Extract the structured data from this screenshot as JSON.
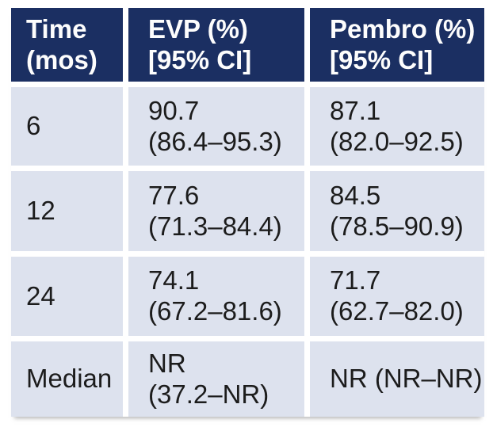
{
  "colors": {
    "header_bg": "#1b2f62",
    "header_text": "#fdfdfd",
    "body_bg": "#dde2ee",
    "body_text": "#1c1c1c",
    "gap": "#ffffff"
  },
  "table": {
    "headers": [
      "Time\n(mos)",
      "EVP (%)\n[95% CI]",
      "Pembro (%)\n[95% CI]"
    ],
    "rows": [
      {
        "time": "6",
        "evp": "90.7\n(86.4–95.3)",
        "pembro": "87.1\n(82.0–92.5)"
      },
      {
        "time": "12",
        "evp": "77.6\n(71.3–84.4)",
        "pembro": "84.5\n(78.5–90.9)"
      },
      {
        "time": "24",
        "evp": "74.1\n(67.2–81.6)",
        "pembro": "71.7\n(62.7–82.0)"
      },
      {
        "time": "Median",
        "evp": "NR\n(37.2–NR)",
        "pembro": "NR (NR–NR)"
      }
    ]
  },
  "chart_data": {
    "type": "table",
    "title": "",
    "columns": [
      "Time (mos)",
      "EVP (%) [95% CI]",
      "Pembro (%) [95% CI]"
    ],
    "rows": [
      [
        "6",
        "90.7 (86.4–95.3)",
        "87.1 (82.0–92.5)"
      ],
      [
        "12",
        "77.6 (71.3–84.4)",
        "84.5 (78.5–90.9)"
      ],
      [
        "24",
        "74.1 (67.2–81.6)",
        "71.7 (62.7–82.0)"
      ],
      [
        "Median",
        "NR (37.2–NR)",
        "NR (NR–NR)"
      ]
    ],
    "series": [
      {
        "name": "EVP",
        "x": [
          6,
          12,
          24
        ],
        "values": [
          90.7,
          77.6,
          74.1
        ],
        "ci_low": [
          86.4,
          71.3,
          67.2
        ],
        "ci_high": [
          95.3,
          84.4,
          81.6
        ],
        "median": "NR",
        "median_ci": "37.2–NR"
      },
      {
        "name": "Pembro",
        "x": [
          6,
          12,
          24
        ],
        "values": [
          87.1,
          84.5,
          71.7
        ],
        "ci_low": [
          82.0,
          78.5,
          62.7
        ],
        "ci_high": [
          92.5,
          90.9,
          82.0
        ],
        "median": "NR",
        "median_ci": "NR–NR"
      }
    ]
  }
}
